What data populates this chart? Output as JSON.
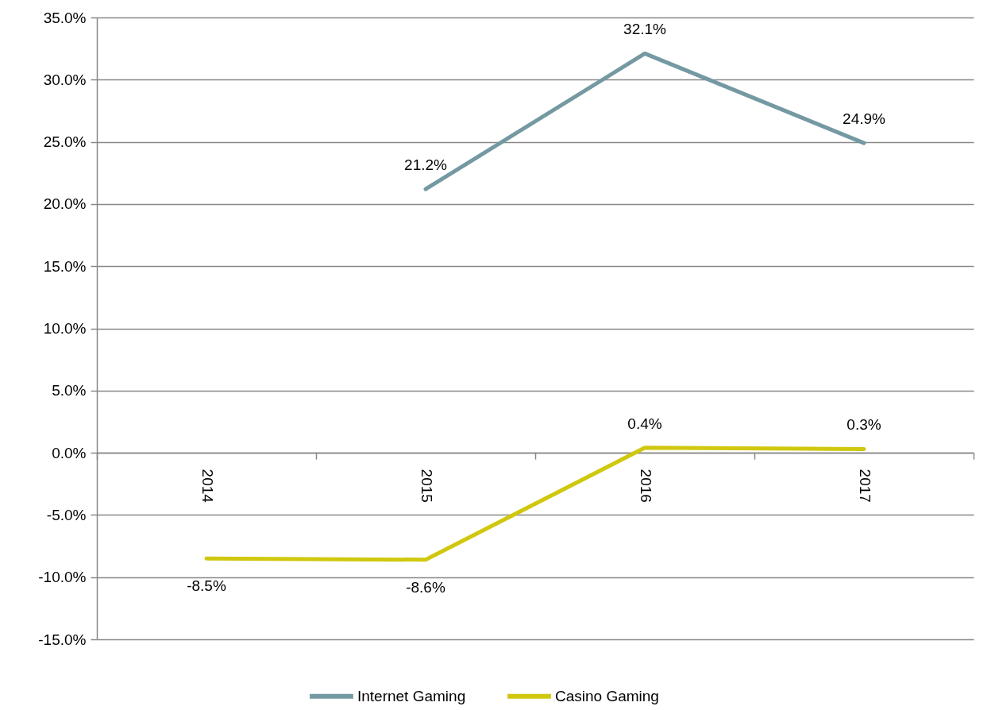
{
  "chart_data": {
    "type": "line",
    "categories": [
      "2014",
      "2015",
      "2016",
      "2017"
    ],
    "series": [
      {
        "name": "Internet Gaming",
        "color": "#7499a3",
        "values": [
          null,
          21.2,
          32.1,
          24.9
        ],
        "value_labels": [
          null,
          "21.2%",
          "32.1%",
          "24.9%"
        ]
      },
      {
        "name": "Casino Gaming",
        "color": "#cfc80e",
        "values": [
          -8.5,
          -8.6,
          0.4,
          0.3
        ],
        "value_labels": [
          "-8.5%",
          "-8.6%",
          "0.4%",
          "0.3%"
        ]
      }
    ],
    "ylim": [
      -15,
      35
    ],
    "yticks": [
      {
        "value": -15,
        "label": "-15.0%"
      },
      {
        "value": -10,
        "label": "-10.0%"
      },
      {
        "value": -5,
        "label": "-5.0%"
      },
      {
        "value": 0,
        "label": "0.0%"
      },
      {
        "value": 5,
        "label": "5.0%"
      },
      {
        "value": 10,
        "label": "10.0%"
      },
      {
        "value": 15,
        "label": "15.0%"
      },
      {
        "value": 20,
        "label": "20.0%"
      },
      {
        "value": 25,
        "label": "25.0%"
      },
      {
        "value": 30,
        "label": "30.0%"
      },
      {
        "value": 35,
        "label": "35.0%"
      }
    ],
    "grid": "y",
    "legend": "bottom",
    "line_style": "solid"
  }
}
